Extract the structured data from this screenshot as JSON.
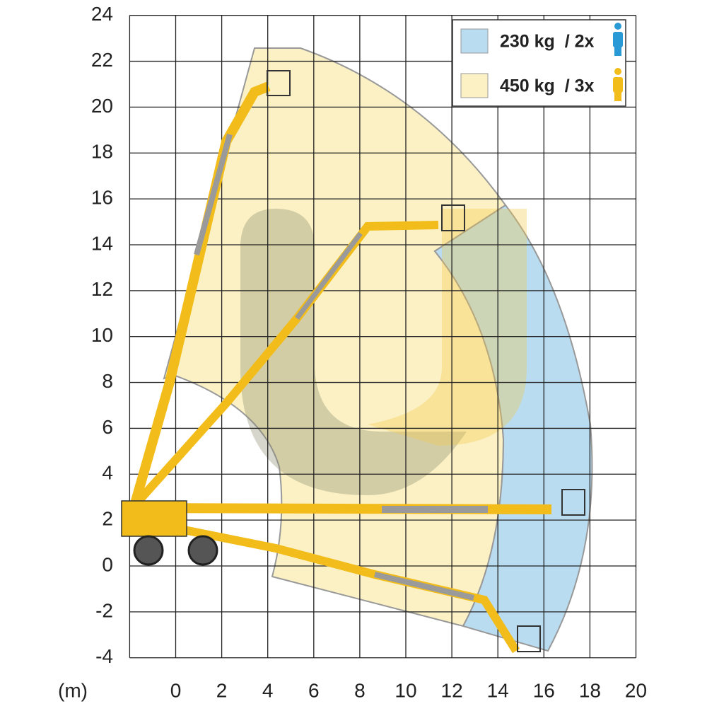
{
  "axes": {
    "unit_label": "(m)",
    "x_ticks": [
      0,
      2,
      4,
      6,
      8,
      10,
      12,
      14,
      16,
      18,
      20
    ],
    "y_ticks": [
      24,
      22,
      20,
      18,
      16,
      14,
      12,
      10,
      8,
      6,
      4,
      2,
      0,
      -2,
      -4
    ]
  },
  "legend": [
    {
      "label": "230 kg  / 2x"
    },
    {
      "label": "450 kg  / 3x"
    }
  ]
}
